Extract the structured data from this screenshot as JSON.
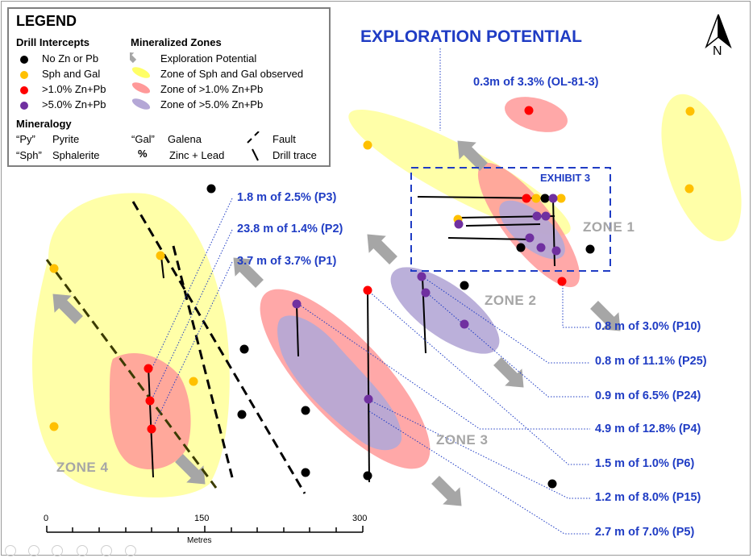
{
  "legend": {
    "title": "LEGEND",
    "drill_intercepts": {
      "heading": "Drill Intercepts",
      "items": [
        {
          "label": "No Zn or Pb",
          "color": "#000000"
        },
        {
          "label": "Sph and Gal",
          "color": "#ffc000"
        },
        {
          "label": ">1.0% Zn+Pb",
          "color": "#ff0000"
        },
        {
          "label": ">5.0% Zn+Pb",
          "color": "#7030a0"
        }
      ]
    },
    "mineralized_zones": {
      "heading": "Mineralized Zones",
      "items": [
        {
          "label": "Exploration Potential",
          "color": "#a6a6a6"
        },
        {
          "label": "Zone of Sph and Gal observed",
          "color": "#ffff66"
        },
        {
          "label": "Zone of >1.0% Zn+Pb",
          "color": "#ff9999"
        },
        {
          "label": "Zone of >5.0% Zn+Pb",
          "color": "#b4a7d6"
        }
      ]
    },
    "mineralogy": {
      "heading": "Mineralogy",
      "py_abbr": "“Py”",
      "py_label": "Pyrite",
      "sph_abbr": "“Sph”",
      "sph_label": "Sphalerite",
      "gal_abbr": "“Gal”",
      "gal_label": "Galena",
      "pct_symbol": "%",
      "pct_label": "Zinc + Lead",
      "fault_label": "Fault",
      "drill_trace_label": "Drill trace"
    }
  },
  "title": "EXPLORATION POTENTIAL",
  "north_label": "N",
  "exhibit_label": "EXHIBIT 3",
  "zones": [
    "ZONE 1",
    "ZONE 2",
    "ZONE 3",
    "ZONE 4"
  ],
  "intercepts_left": [
    "1.8 m of 2.5% (P3)",
    "23.8 m of 1.4% (P2)",
    "3.7 m of 3.7% (P1)"
  ],
  "intercepts_right": [
    "0.8 m of 3.0% (P10)",
    "0.8 m of 11.1% (P25)",
    "0.9 m of 6.5% (P24)",
    "4.9 m of 12.8% (P4)",
    "1.5 m of 1.0% (P6)",
    "1.2 m of 8.0% (P15)",
    "2.7 m of 7.0% (P5)"
  ],
  "intercept_top": "0.3m of 3.3% (OL-81-3)",
  "scale": {
    "ticks": [
      "0",
      "150",
      "300"
    ],
    "unit": "Metres"
  },
  "colors": {
    "label_blue": "#1f3cc4",
    "zone_gray": "#a6a6a6"
  }
}
